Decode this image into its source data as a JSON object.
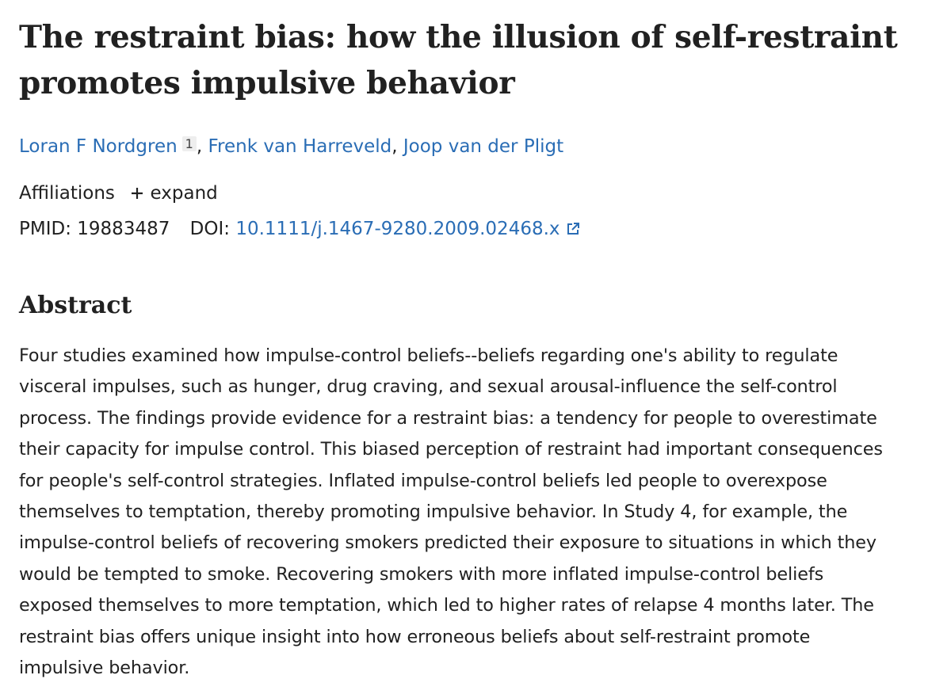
{
  "header": {
    "title_lines": [
      "The restraint bias: how the illusion of self-restraint",
      "promotes impulsive behavior"
    ]
  },
  "authors": {
    "names": [
      "Loran F Nordgren",
      "Frenk van Harreveld",
      "Joop van der Pligt"
    ],
    "affiliation_mark": "1",
    "separator": ","
  },
  "affiliations": {
    "label": "Affiliations",
    "toggle": "expand"
  },
  "identifiers": {
    "pmid_label": "PMID:",
    "pmid": "19883487",
    "doi_label": "DOI:",
    "doi": "10.1111/j.1467-9280.2009.02468.x"
  },
  "abstract": {
    "heading": "Abstract",
    "lines": [
      "Four studies examined how impulse-control beliefs--beliefs regarding one's ability to regulate",
      "visceral impulses, such as hunger, drug craving, and sexual arousal-influence the self-control",
      "process. The findings provide evidence for a restraint bias: a tendency for people to overestimate",
      "their capacity for impulse control. This biased perception of restraint had important consequences",
      "for people's self-control strategies. Inflated impulse-control beliefs led people to overexpose",
      "themselves to temptation, thereby promoting impulsive behavior. In Study 4, for example, the",
      "impulse-control beliefs of recovering smokers predicted their exposure to situations in which they",
      "would be tempted to smoke. Recovering smokers with more inflated impulse-control beliefs",
      "exposed themselves to more temptation, which led to higher rates of relapse 4 months later. The",
      "restraint bias offers unique insight into how erroneous beliefs about self-restraint promote",
      "impulsive behavior."
    ]
  }
}
